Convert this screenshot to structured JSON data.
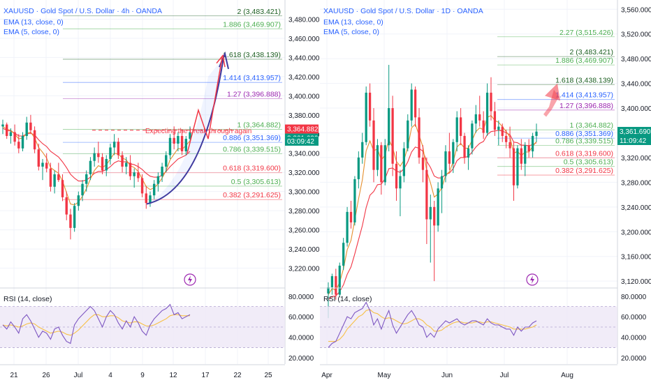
{
  "colors": {
    "up": "#089981",
    "down": "#f23645",
    "ema13": "#f23645",
    "ema5": "#e58f2d",
    "rsi": "#7e57c2",
    "rsi_ma": "#f7c046",
    "rsi_band": "#ede7f6",
    "fib_green": "#4caf50",
    "fib_red": "#f23645",
    "fib_purple": "#9c27b0",
    "fib_blue": "#2962ff",
    "fib_dark": "#1b5e20",
    "title": "#2962ff"
  },
  "chart_data": [
    {
      "type": "candlestick",
      "panel": "left",
      "title": "XAUUSD · Gold Spot / U.S. Dollar · 4h · OANDA",
      "indicators": [
        "EMA (13, close, 0)",
        "EMA (5, close, 0)"
      ],
      "annotation": "Expecting the break through again",
      "ylim": [
        3200,
        3500
      ],
      "y_ticks": [
        "3,480.000",
        "3,460.000",
        "3,440.000",
        "3,420.000",
        "3,400.000",
        "3,380.000",
        "3,360.000",
        "3,340.000",
        "3,320.000",
        "3,300.000",
        "3,280.000",
        "3,260.000",
        "3,240.000",
        "3,220.000"
      ],
      "x_ticks": [
        "21",
        "26",
        "Jul",
        "4",
        "9",
        "12",
        "17",
        "22",
        "25"
      ],
      "fib_levels": [
        {
          "label": "2 (3,483.421)",
          "value": 3483.421,
          "color": "dark"
        },
        {
          "label": "1.886 (3,469.907)",
          "value": 3469.907,
          "color": "green"
        },
        {
          "label": "1.618 (3,438.139)",
          "value": 3438.139,
          "color": "dark"
        },
        {
          "label": "1.414 (3,413.957)",
          "value": 3413.957,
          "color": "blue"
        },
        {
          "label": "1.27 (3,396.888)",
          "value": 3396.888,
          "color": "purple"
        },
        {
          "label": "1 (3,364.882)",
          "value": 3364.882,
          "color": "green"
        },
        {
          "label": "0.886 (3,351.369)",
          "value": 3351.369,
          "color": "blue"
        },
        {
          "label": "0.786 (3,339.515)",
          "value": 3339.515,
          "color": "green"
        },
        {
          "label": "0.618 (3,319.600)",
          "value": 3319.6,
          "color": "red"
        },
        {
          "label": "0.5 (3,305.613)",
          "value": 3305.613,
          "color": "green"
        },
        {
          "label": "0.382 (3,291.625)",
          "value": 3291.625,
          "color": "red"
        }
      ],
      "price_badges": [
        {
          "text": "3,364.882",
          "value": 3364.882,
          "color": "red"
        },
        {
          "text": "3,361.690",
          "value": 3361.69,
          "color": "green"
        },
        {
          "text": "03:09:42",
          "value": 3361.69,
          "color": "green",
          "sub": true
        }
      ],
      "candles": [
        [
          3368,
          3375,
          3360,
          3370
        ],
        [
          3370,
          3372,
          3355,
          3358
        ],
        [
          3358,
          3366,
          3350,
          3362
        ],
        [
          3362,
          3370,
          3348,
          3352
        ],
        [
          3352,
          3360,
          3340,
          3345
        ],
        [
          3345,
          3362,
          3342,
          3358
        ],
        [
          3358,
          3378,
          3354,
          3372
        ],
        [
          3372,
          3380,
          3360,
          3364
        ],
        [
          3364,
          3368,
          3340,
          3344
        ],
        [
          3344,
          3350,
          3322,
          3326
        ],
        [
          3326,
          3334,
          3312,
          3330
        ],
        [
          3330,
          3340,
          3320,
          3324
        ],
        [
          3324,
          3330,
          3300,
          3305
        ],
        [
          3305,
          3322,
          3298,
          3318
        ],
        [
          3318,
          3330,
          3310,
          3312
        ],
        [
          3312,
          3318,
          3290,
          3294
        ],
        [
          3294,
          3300,
          3270,
          3276
        ],
        [
          3276,
          3282,
          3250,
          3262
        ],
        [
          3262,
          3288,
          3258,
          3285
        ],
        [
          3285,
          3300,
          3280,
          3296
        ],
        [
          3296,
          3312,
          3290,
          3308
        ],
        [
          3308,
          3322,
          3300,
          3318
        ],
        [
          3318,
          3336,
          3312,
          3332
        ],
        [
          3332,
          3346,
          3326,
          3340
        ],
        [
          3340,
          3352,
          3330,
          3336
        ],
        [
          3336,
          3340,
          3318,
          3322
        ],
        [
          3322,
          3338,
          3316,
          3334
        ],
        [
          3334,
          3350,
          3328,
          3346
        ],
        [
          3346,
          3360,
          3338,
          3352
        ],
        [
          3352,
          3356,
          3334,
          3338
        ],
        [
          3338,
          3342,
          3320,
          3326
        ],
        [
          3326,
          3336,
          3318,
          3330
        ],
        [
          3330,
          3338,
          3312,
          3316
        ],
        [
          3316,
          3324,
          3304,
          3320
        ],
        [
          3320,
          3330,
          3310,
          3314
        ],
        [
          3314,
          3318,
          3294,
          3298
        ],
        [
          3298,
          3306,
          3282,
          3288
        ],
        [
          3288,
          3300,
          3284,
          3296
        ],
        [
          3296,
          3312,
          3292,
          3308
        ],
        [
          3308,
          3320,
          3300,
          3316
        ],
        [
          3316,
          3330,
          3310,
          3326
        ],
        [
          3326,
          3342,
          3320,
          3338
        ],
        [
          3338,
          3360,
          3334,
          3356
        ],
        [
          3356,
          3368,
          3344,
          3350
        ],
        [
          3350,
          3362,
          3342,
          3358
        ],
        [
          3358,
          3364,
          3338,
          3342
        ],
        [
          3342,
          3358,
          3338,
          3355
        ],
        [
          3355,
          3368,
          3350,
          3362
        ]
      ],
      "ema13": [
        3366,
        3364,
        3363,
        3361,
        3358,
        3358,
        3360,
        3361,
        3359,
        3354,
        3350,
        3347,
        3342,
        3339,
        3336,
        3331,
        3325,
        3318,
        3314,
        3311,
        3311,
        3312,
        3315,
        3319,
        3321,
        3321,
        3323,
        3326,
        3330,
        3332,
        3331,
        3331,
        3329,
        3328,
        3326,
        3323,
        3319,
        3316,
        3315,
        3315,
        3317,
        3321,
        3326,
        3330,
        3334,
        3336,
        3338,
        3342
      ],
      "ema5": [
        3368,
        3365,
        3364,
        3360,
        3355,
        3356,
        3361,
        3362,
        3356,
        3346,
        3341,
        3335,
        3325,
        3322,
        3319,
        3311,
        3299,
        3287,
        3286,
        3289,
        3295,
        3303,
        3313,
        3322,
        3327,
        3325,
        3328,
        3334,
        3340,
        3339,
        3335,
        3333,
        3327,
        3325,
        3321,
        3313,
        3305,
        3302,
        3304,
        3308,
        3314,
        3322,
        3333,
        3339,
        3345,
        3344,
        3348,
        3353
      ],
      "rsi": [
        52,
        48,
        55,
        50,
        44,
        58,
        62,
        56,
        48,
        40,
        46,
        44,
        38,
        48,
        50,
        42,
        36,
        34,
        52,
        58,
        62,
        66,
        70,
        66,
        58,
        50,
        60,
        66,
        62,
        54,
        48,
        56,
        50,
        60,
        54,
        46,
        42,
        52,
        58,
        62,
        66,
        68,
        72,
        62,
        64,
        58,
        60,
        62
      ],
      "rsi_ma": [
        52,
        51,
        52,
        51,
        50,
        51,
        53,
        54,
        53,
        50,
        48,
        46,
        44,
        45,
        46,
        45,
        43,
        42,
        44,
        47,
        51,
        55,
        59,
        62,
        62,
        60,
        60,
        61,
        61,
        59,
        56,
        55,
        54,
        55,
        55,
        53,
        51,
        51,
        52,
        54,
        56,
        58,
        61,
        62,
        62,
        61,
        61,
        61
      ],
      "rsi_ticks": [
        "80.0000",
        "60.0000",
        "40.0000",
        "20.0000"
      ],
      "rsi_label": "RSI (14, close)"
    },
    {
      "type": "candlestick",
      "panel": "right",
      "title": "XAUUSD · Gold Spot / U.S. Dollar · 1D · OANDA",
      "indicators": [
        "EMA (13, close, 0)",
        "EMA (5, close, 0)"
      ],
      "ylim": [
        3110,
        3575
      ],
      "y_ticks": [
        "3,560.000",
        "3,520.000",
        "3,480.000",
        "3,440.000",
        "3,400.000",
        "3,360.000",
        "3,320.000",
        "3,280.000",
        "3,240.000",
        "3,200.000",
        "3,160.000",
        "3,120.000"
      ],
      "x_ticks": [
        "Apr",
        "May",
        "Jun",
        "Jul",
        "Aug"
      ],
      "fib_levels": [
        {
          "label": "2.27 (3,515.426)",
          "value": 3515.426,
          "color": "green"
        },
        {
          "label": "2 (3,483.421)",
          "value": 3483.421,
          "color": "dark"
        },
        {
          "label": "1.886 (3,469.907)",
          "value": 3469.907,
          "color": "green"
        },
        {
          "label": "1.618 (3,438.139)",
          "value": 3438.139,
          "color": "dark"
        },
        {
          "label": "1.414 (3,413.957)",
          "value": 3413.957,
          "color": "blue"
        },
        {
          "label": "1.27 (3,396.888)",
          "value": 3396.888,
          "color": "purple"
        },
        {
          "label": "1 (3,364.882)",
          "value": 3364.882,
          "color": "green"
        },
        {
          "label": "0.886 (3,351.369)",
          "value": 3351.369,
          "color": "blue"
        },
        {
          "label": "0.786 (3,339.515)",
          "value": 3339.515,
          "color": "green"
        },
        {
          "label": "0.618 (3,319.600)",
          "value": 3319.6,
          "color": "red"
        },
        {
          "label": "0.5 (3,305.613)",
          "value": 3305.613,
          "color": "green"
        },
        {
          "label": "0.382 (3,291.625)",
          "value": 3291.625,
          "color": "red"
        }
      ],
      "price_badges": [
        {
          "text": "3,361.690",
          "value": 3361.69,
          "color": "green"
        },
        {
          "text": "11:09:42",
          "value": 3361.69,
          "color": "green",
          "sub": true
        }
      ],
      "candles": [
        [
          3100,
          3118,
          3060,
          3110
        ],
        [
          3110,
          3132,
          3098,
          3128
        ],
        [
          3128,
          3140,
          3090,
          3098
        ],
        [
          3098,
          3150,
          3094,
          3145
        ],
        [
          3145,
          3190,
          3138,
          3182
        ],
        [
          3182,
          3240,
          3176,
          3232
        ],
        [
          3232,
          3250,
          3205,
          3215
        ],
        [
          3215,
          3290,
          3210,
          3285
        ],
        [
          3285,
          3330,
          3270,
          3320
        ],
        [
          3320,
          3360,
          3310,
          3345
        ],
        [
          3345,
          3435,
          3340,
          3425
        ],
        [
          3425,
          3440,
          3370,
          3380
        ],
        [
          3380,
          3400,
          3280,
          3300
        ],
        [
          3300,
          3350,
          3290,
          3340
        ],
        [
          3340,
          3345,
          3260,
          3280
        ],
        [
          3280,
          3350,
          3275,
          3340
        ],
        [
          3340,
          3470,
          3330,
          3400
        ],
        [
          3400,
          3420,
          3290,
          3310
        ],
        [
          3310,
          3330,
          3250,
          3270
        ],
        [
          3270,
          3300,
          3225,
          3290
        ],
        [
          3290,
          3345,
          3280,
          3335
        ],
        [
          3335,
          3390,
          3330,
          3380
        ],
        [
          3380,
          3440,
          3370,
          3430
        ],
        [
          3430,
          3435,
          3370,
          3385
        ],
        [
          3385,
          3400,
          3310,
          3320
        ],
        [
          3320,
          3340,
          3280,
          3300
        ],
        [
          3300,
          3320,
          3180,
          3220
        ],
        [
          3220,
          3260,
          3150,
          3240
        ],
        [
          3240,
          3250,
          3120,
          3210
        ],
        [
          3210,
          3280,
          3200,
          3270
        ],
        [
          3270,
          3300,
          3230,
          3290
        ],
        [
          3290,
          3340,
          3280,
          3330
        ],
        [
          3330,
          3360,
          3300,
          3310
        ],
        [
          3310,
          3350,
          3295,
          3345
        ],
        [
          3345,
          3395,
          3330,
          3385
        ],
        [
          3385,
          3400,
          3340,
          3355
        ],
        [
          3355,
          3360,
          3310,
          3320
        ],
        [
          3320,
          3340,
          3300,
          3335
        ],
        [
          3335,
          3380,
          3325,
          3375
        ],
        [
          3375,
          3405,
          3360,
          3390
        ],
        [
          3390,
          3420,
          3370,
          3380
        ],
        [
          3380,
          3395,
          3350,
          3360
        ],
        [
          3360,
          3440,
          3355,
          3425
        ],
        [
          3425,
          3450,
          3380,
          3395
        ],
        [
          3395,
          3410,
          3355,
          3365
        ],
        [
          3365,
          3380,
          3340,
          3370
        ],
        [
          3370,
          3375,
          3345,
          3355
        ],
        [
          3355,
          3365,
          3335,
          3345
        ],
        [
          3345,
          3370,
          3320,
          3335
        ],
        [
          3335,
          3345,
          3250,
          3275
        ],
        [
          3275,
          3340,
          3270,
          3335
        ],
        [
          3335,
          3350,
          3300,
          3310
        ],
        [
          3310,
          3345,
          3290,
          3340
        ],
        [
          3340,
          3350,
          3320,
          3330
        ],
        [
          3330,
          3360,
          3320,
          3355
        ],
        [
          3355,
          3375,
          3345,
          3362
        ]
      ],
      "ema13": [
        3090,
        3095,
        3096,
        3103,
        3114,
        3131,
        3143,
        3164,
        3187,
        3210,
        3239,
        3259,
        3265,
        3276,
        3277,
        3286,
        3302,
        3303,
        3298,
        3296,
        3302,
        3313,
        3329,
        3337,
        3335,
        3330,
        3314,
        3304,
        3290,
        3287,
        3287,
        3293,
        3295,
        3302,
        3315,
        3320,
        3320,
        3322,
        3329,
        3337,
        3343,
        3346,
        3357,
        3362,
        3363,
        3364,
        3363,
        3360,
        3357,
        3345,
        3344,
        3340,
        3340,
        3339,
        3341,
        3344
      ],
      "ema5": [
        3098,
        3108,
        3105,
        3118,
        3140,
        3171,
        3186,
        3219,
        3253,
        3284,
        3331,
        3347,
        3331,
        3334,
        3316,
        3324,
        3349,
        3336,
        3314,
        3306,
        3316,
        3337,
        3368,
        3374,
        3356,
        3337,
        3298,
        3279,
        3256,
        3261,
        3271,
        3291,
        3297,
        3313,
        3337,
        3343,
        3335,
        3335,
        3348,
        3362,
        3368,
        3365,
        3385,
        3388,
        3380,
        3377,
        3370,
        3362,
        3353,
        3327,
        3330,
        3323,
        3329,
        3329,
        3338,
        3346
      ],
      "rsi": [
        30,
        34,
        36,
        44,
        52,
        60,
        58,
        64,
        66,
        68,
        74,
        66,
        52,
        58,
        48,
        58,
        66,
        52,
        44,
        50,
        56,
        62,
        66,
        60,
        52,
        50,
        40,
        44,
        40,
        48,
        52,
        56,
        54,
        56,
        58,
        54,
        52,
        54,
        56,
        56,
        54,
        52,
        58,
        54,
        52,
        52,
        50,
        48,
        48,
        42,
        50,
        46,
        50,
        50,
        54,
        56
      ],
      "rsi_ma": [
        36,
        36,
        36,
        38,
        42,
        48,
        52,
        56,
        60,
        62,
        66,
        67,
        64,
        63,
        60,
        58,
        59,
        58,
        56,
        54,
        53,
        54,
        56,
        58,
        58,
        56,
        52,
        50,
        46,
        46,
        47,
        50,
        52,
        54,
        55,
        55,
        54,
        54,
        54,
        55,
        55,
        54,
        55,
        55,
        54,
        53,
        52,
        51,
        50,
        48,
        48,
        48,
        48,
        49,
        50,
        52
      ],
      "rsi_ticks": [
        "80.0000",
        "60.0000",
        "40.0000",
        "20.0000"
      ],
      "rsi_label": "RSI (14, close)"
    }
  ]
}
